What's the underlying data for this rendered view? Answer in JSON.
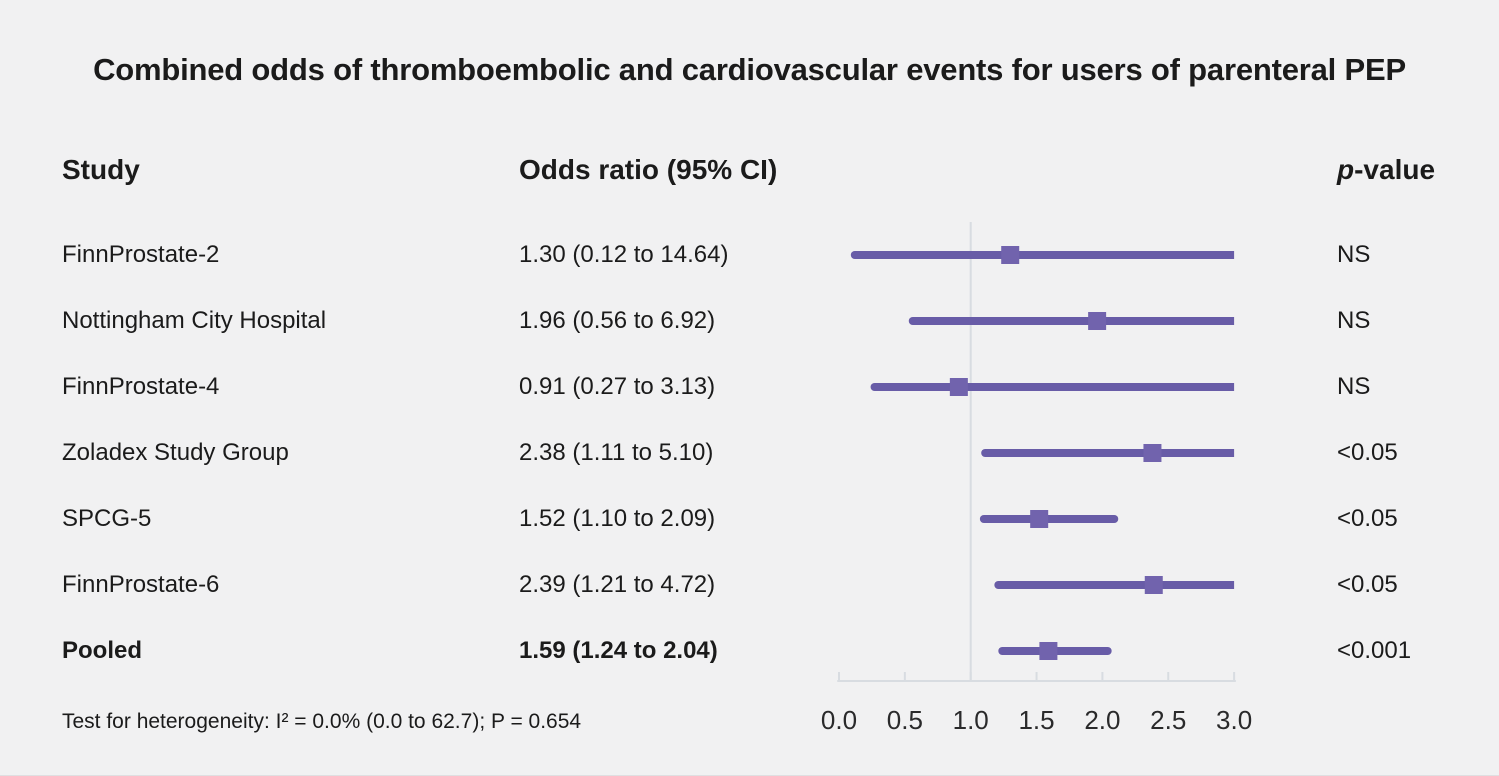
{
  "title": "Combined odds of thromboembolic and cardiovascular events for users of parenteral PEP",
  "columns": {
    "study": "Study",
    "odds_ratio": "Odds ratio (95% CI)",
    "p_value_italic": "p",
    "p_value_rest": "-value"
  },
  "footer": "Test for heterogeneity: I² = 0.0% (0.0 to 62.7); P = 0.654",
  "chart_data": {
    "type": "forest",
    "title": "Combined odds of thromboembolic and cardiovascular events for users of parenteral PEP",
    "rows": [
      {
        "study": "FinnProstate-2",
        "or_label": "1.30 (0.12 to 14.64)",
        "or": 1.3,
        "ci_low": 0.12,
        "ci_high": 14.64,
        "p": "NS",
        "bold": false
      },
      {
        "study": "Nottingham City Hospital",
        "or_label": "1.96 (0.56 to 6.92)",
        "or": 1.96,
        "ci_low": 0.56,
        "ci_high": 6.92,
        "p": "NS",
        "bold": false
      },
      {
        "study": "FinnProstate-4",
        "or_label": "0.91 (0.27 to 3.13)",
        "or": 0.91,
        "ci_low": 0.27,
        "ci_high": 3.13,
        "p": "NS",
        "bold": false
      },
      {
        "study": "Zoladex Study Group",
        "or_label": "2.38 (1.11 to 5.10)",
        "or": 2.38,
        "ci_low": 1.11,
        "ci_high": 5.1,
        "p": "<0.05",
        "bold": false
      },
      {
        "study": "SPCG-5",
        "or_label": "1.52 (1.10 to 2.09)",
        "or": 1.52,
        "ci_low": 1.1,
        "ci_high": 2.09,
        "p": "<0.05",
        "bold": false
      },
      {
        "study": "FinnProstate-6",
        "or_label": "2.39 (1.21 to 4.72)",
        "or": 2.39,
        "ci_low": 1.21,
        "ci_high": 4.72,
        "p": "<0.05",
        "bold": false
      },
      {
        "study": "Pooled",
        "or_label": "1.59 (1.24 to 2.04)",
        "or": 1.59,
        "ci_low": 1.24,
        "ci_high": 2.04,
        "p": "<0.001",
        "bold": true
      }
    ],
    "axis": {
      "min": 0.0,
      "max": 3.0,
      "ticks": [
        "0.0",
        "0.5",
        "1.0",
        "1.5",
        "2.0",
        "2.5",
        "3.0"
      ],
      "tick_values": [
        0.0,
        0.5,
        1.0,
        1.5,
        2.0,
        2.5,
        3.0
      ],
      "reference_line": 1.0
    },
    "colors": {
      "ci_line": "#685ca7",
      "marker": "#7163ad",
      "axis": "#d8dce1",
      "background": "#f1f1f2",
      "text": "#1b1b1b"
    }
  }
}
